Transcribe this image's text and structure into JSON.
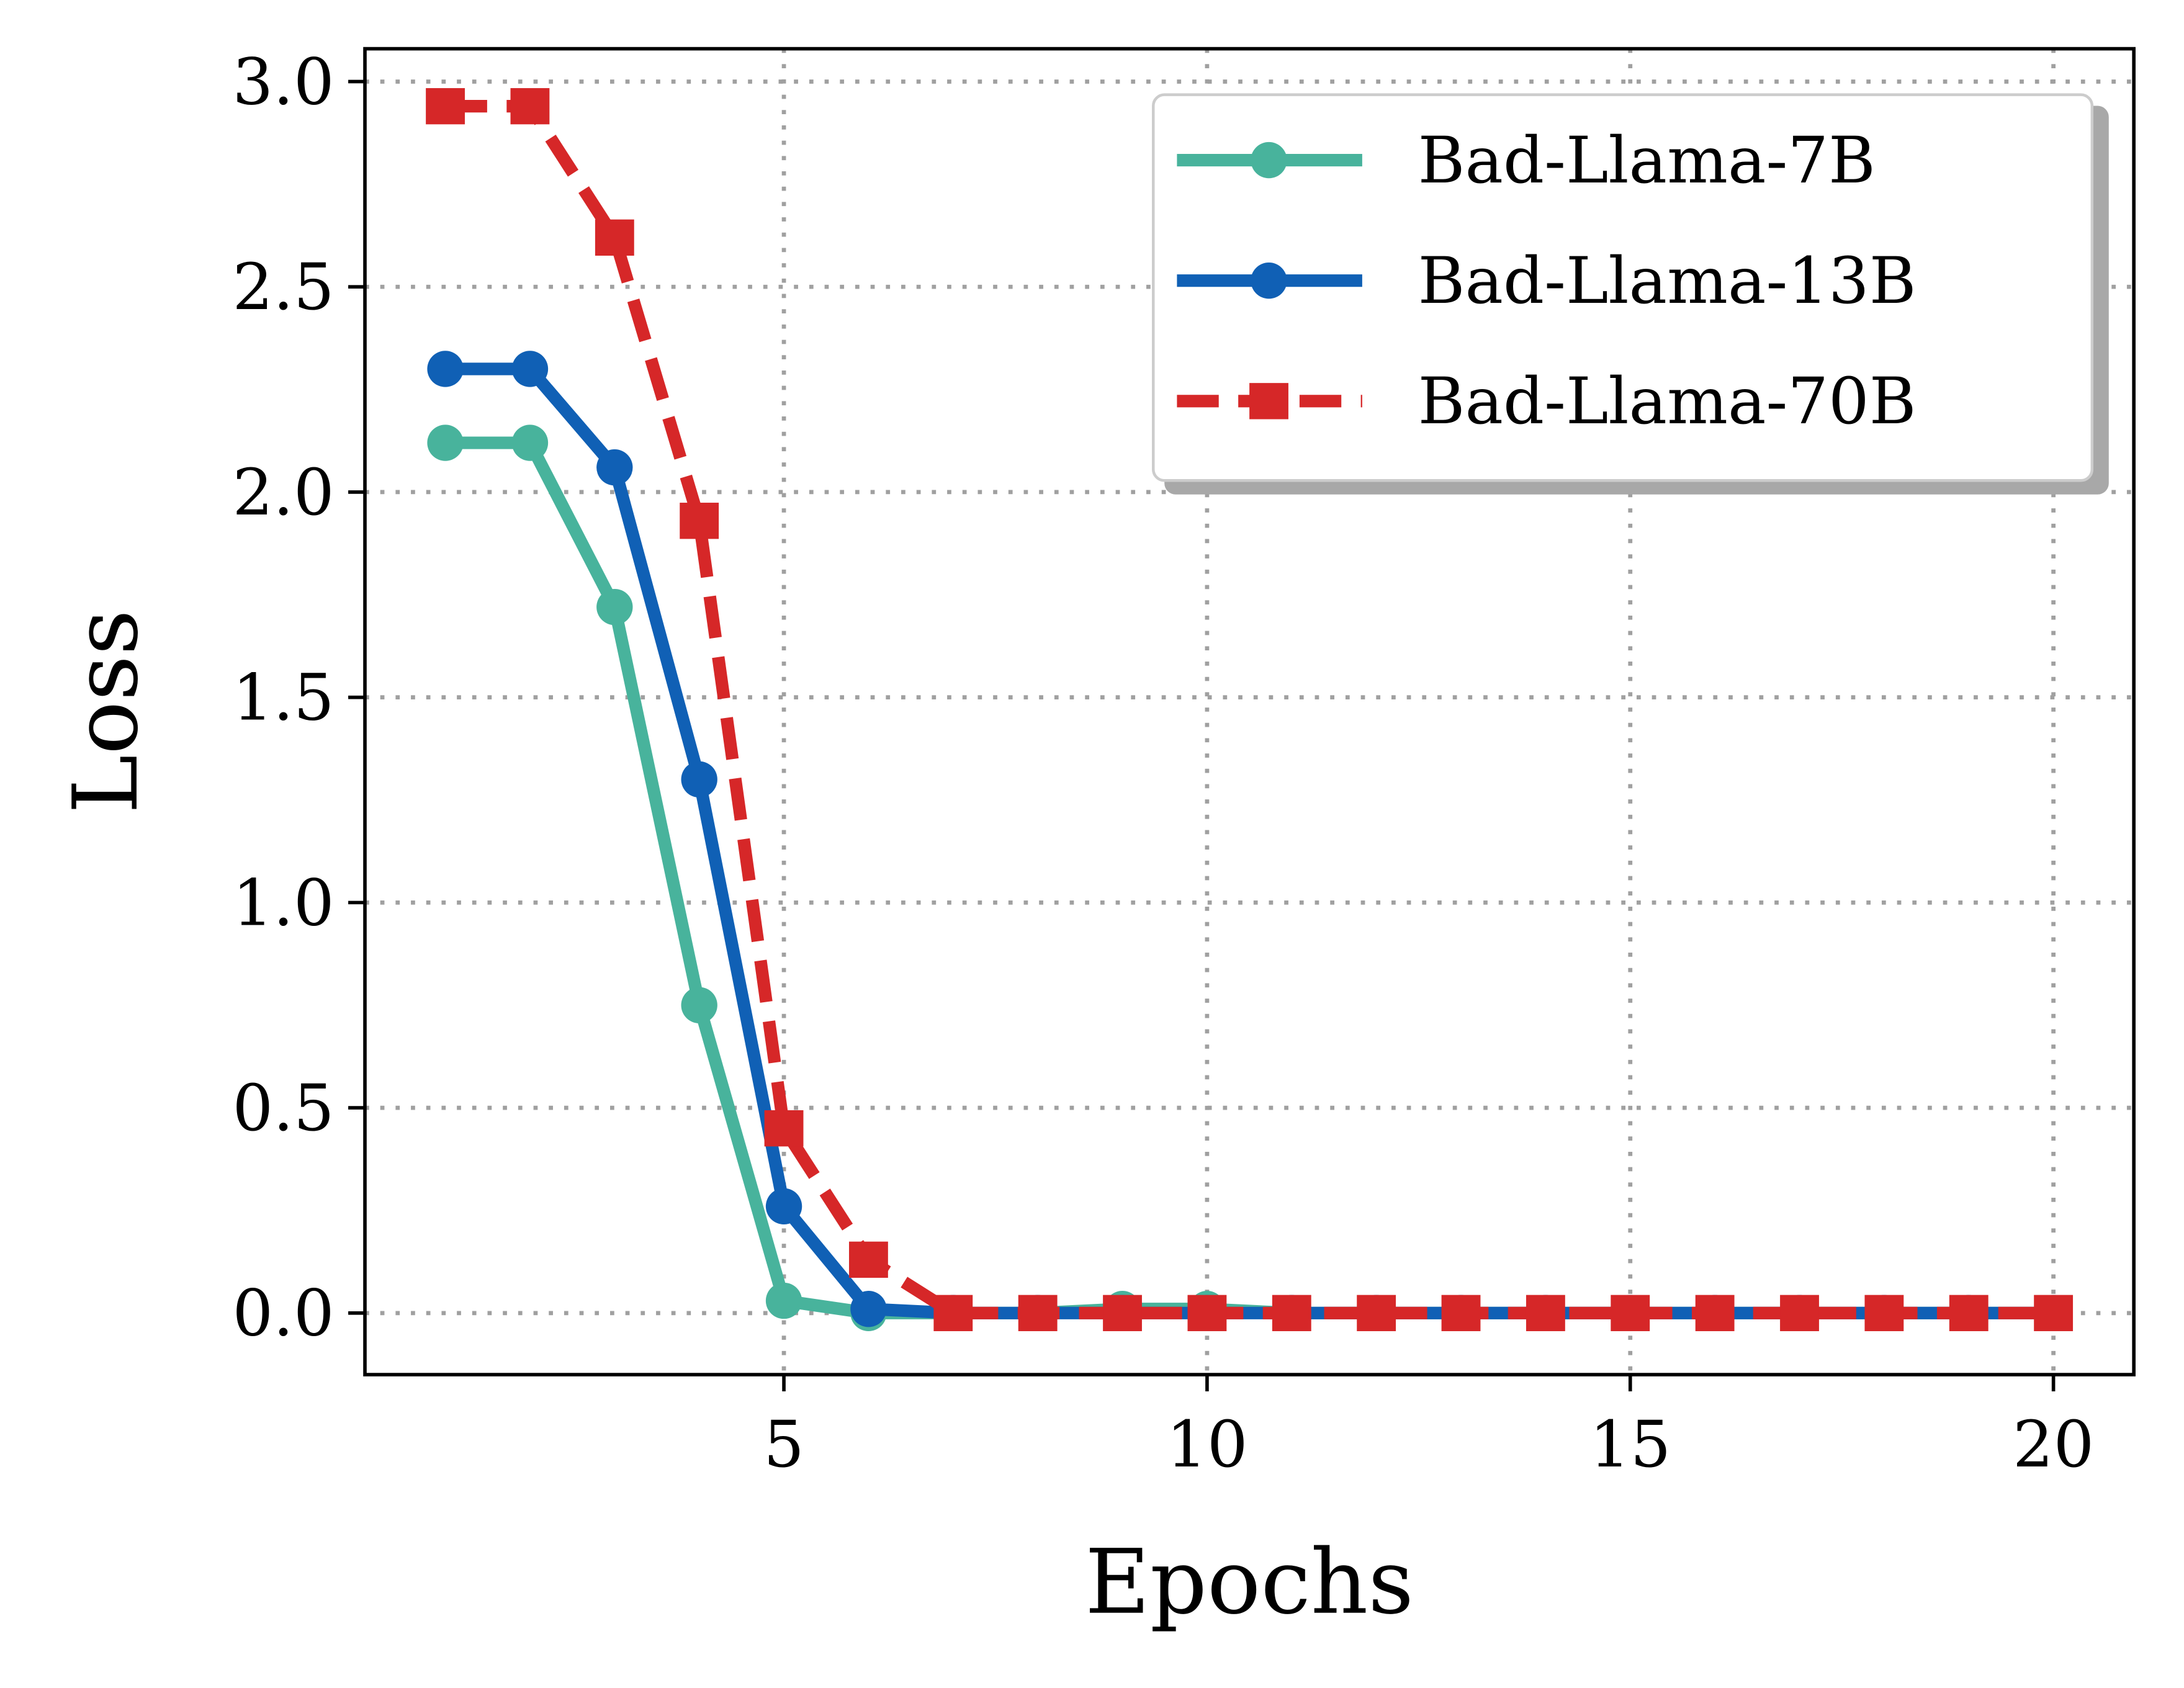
{
  "chart_data": {
    "type": "line",
    "xlabel": "Epochs",
    "ylabel": "Loss",
    "xlim": [
      0.05,
      20.95
    ],
    "ylim": [
      -0.15,
      3.08
    ],
    "xticks": [
      5,
      10,
      15,
      20
    ],
    "xtick_labels": [
      "5",
      "10",
      "15",
      "20"
    ],
    "yticks": [
      0,
      0.5,
      1,
      1.5,
      2,
      2.5,
      3
    ],
    "ytick_labels": [
      "0.0",
      "0.5",
      "1.0",
      "1.5",
      "2.0",
      "2.5",
      "3.0"
    ],
    "grid": true,
    "legend_position": "top-right",
    "x": [
      1,
      2,
      3,
      4,
      5,
      6,
      7,
      8,
      9,
      10,
      11,
      12,
      13,
      14,
      15,
      16,
      17,
      18,
      19,
      20
    ],
    "series": [
      {
        "name": "Bad-Llama-7B",
        "color": "#48b39c",
        "marker": "circle",
        "dash": "solid",
        "values": [
          2.12,
          2.12,
          1.72,
          0.75,
          0.03,
          0.0,
          0.0,
          0.0,
          0.01,
          0.01,
          0.0,
          0.0,
          0.0,
          0.0,
          0.0,
          0.0,
          0.0,
          0.0,
          0.0,
          0.0
        ]
      },
      {
        "name": "Bad-Llama-13B",
        "color": "#1060b5",
        "marker": "circle",
        "dash": "solid",
        "values": [
          2.3,
          2.3,
          2.06,
          1.3,
          0.26,
          0.01,
          0.0,
          0.0,
          0.0,
          0.0,
          0.0,
          0.0,
          0.0,
          0.0,
          0.0,
          0.0,
          0.0,
          0.0,
          0.0,
          0.0
        ]
      },
      {
        "name": "Bad-Llama-70B",
        "color": "#d62728",
        "marker": "square",
        "dash": "dashed",
        "values": [
          2.94,
          2.94,
          2.62,
          1.93,
          0.45,
          0.13,
          0.0,
          0.0,
          0.0,
          0.0,
          0.0,
          0.0,
          0.0,
          0.0,
          0.0,
          0.0,
          0.0,
          0.0,
          0.0,
          0.0
        ]
      }
    ]
  }
}
